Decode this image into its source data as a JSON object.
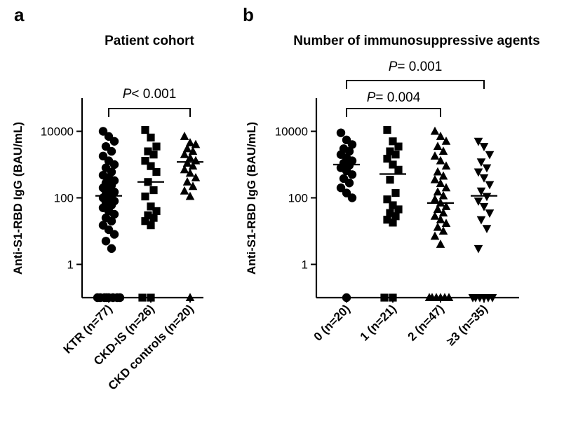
{
  "chart_data": [
    {
      "type": "scatter",
      "panel": "a",
      "title": "Patient cohort",
      "xlabel": "",
      "ylabel": "Anti-S1-RBD IgG (BAU/mL)",
      "yscale": "log10",
      "ylim": [
        0.1,
        100000
      ],
      "yticks": [
        1,
        100,
        10000
      ],
      "ytick_labels": [
        "1",
        "100",
        "10000"
      ],
      "categories": [
        "KTR (n=77)",
        "CKD-IS (n=26)",
        "CKD controls (n=20)"
      ],
      "markers": [
        "circle",
        "square",
        "triangle-up"
      ],
      "medians": [
        115,
        300,
        1200
      ],
      "series": [
        {
          "name": "KTR (n=77)",
          "values": [
            10000,
            7000,
            5000,
            3500,
            2500,
            1800,
            1300,
            1000,
            800,
            600,
            480,
            400,
            330,
            280,
            240,
            200,
            170,
            150,
            130,
            115,
            100,
            90,
            80,
            70,
            60,
            50,
            40,
            32,
            25,
            20,
            15,
            11,
            8,
            5,
            3,
            0.1,
            0.1,
            0.1,
            0.1,
            0.1,
            0.1,
            0.1,
            0.1
          ]
        },
        {
          "name": "CKD-IS (n=26)",
          "values": [
            11000,
            6500,
            3500,
            2500,
            2000,
            1300,
            900,
            600,
            300,
            170,
            110,
            55,
            40,
            30,
            25,
            20,
            15,
            0.1,
            0.1
          ]
        },
        {
          "name": "CKD controls (n=20)",
          "values": [
            7000,
            4500,
            4000,
            3000,
            2500,
            2000,
            1600,
            1300,
            1100,
            900,
            700,
            550,
            400,
            300,
            220,
            160,
            110,
            0.1
          ]
        }
      ],
      "annotations": [
        {
          "label": "P",
          "text": "< 0.001",
          "from": "KTR (n=77)",
          "to": "CKD controls (n=20)"
        }
      ]
    },
    {
      "type": "scatter",
      "panel": "b",
      "title": "Number of immunosuppressive agents",
      "xlabel": "",
      "ylabel": "Anti-S1-RBD IgG (BAU/mL)",
      "yscale": "log10",
      "ylim": [
        0.1,
        100000
      ],
      "yticks": [
        1,
        100,
        10000
      ],
      "ytick_labels": [
        "1",
        "100",
        "10000"
      ],
      "categories": [
        "0 (n=20)",
        "1 (n=21)",
        "2 (n=47)",
        "≥3 (n=35)"
      ],
      "markers": [
        "circle",
        "square",
        "triangle-up",
        "triangle-down"
      ],
      "medians": [
        1000,
        520,
        70,
        115
      ],
      "series": [
        {
          "name": "0 (n=20)",
          "values": [
            9000,
            5500,
            4000,
            3000,
            2500,
            2000,
            1600,
            1300,
            1100,
            950,
            800,
            650,
            500,
            380,
            280,
            200,
            140,
            100,
            0.1
          ]
        },
        {
          "name": "1 (n=21)",
          "values": [
            11000,
            5000,
            3500,
            2500,
            2000,
            1500,
            1000,
            700,
            350,
            140,
            90,
            60,
            45,
            35,
            28,
            22,
            18,
            0.1,
            0.1
          ]
        },
        {
          "name": "2 (n=47)",
          "values": [
            10000,
            7000,
            5000,
            3500,
            2500,
            1800,
            1300,
            900,
            600,
            450,
            350,
            270,
            200,
            150,
            115,
            90,
            70,
            55,
            45,
            35,
            28,
            22,
            17,
            13,
            10,
            7,
            4,
            0.1,
            0.1,
            0.1,
            0.1,
            0.1,
            0.1
          ]
        },
        {
          "name": "≥3 (n=35)",
          "values": [
            5000,
            3500,
            2000,
            1200,
            800,
            600,
            400,
            250,
            160,
            110,
            80,
            55,
            35,
            22,
            12,
            3,
            0.1,
            0.1,
            0.1,
            0.1,
            0.1,
            0.1
          ]
        }
      ],
      "annotations": [
        {
          "label": "P",
          "text": "= 0.004",
          "from": "0 (n=20)",
          "to": "2 (n=47)"
        },
        {
          "label": "P",
          "text": "= 0.001",
          "from": "0 (n=20)",
          "to": "≥3 (n=35)"
        }
      ]
    }
  ]
}
